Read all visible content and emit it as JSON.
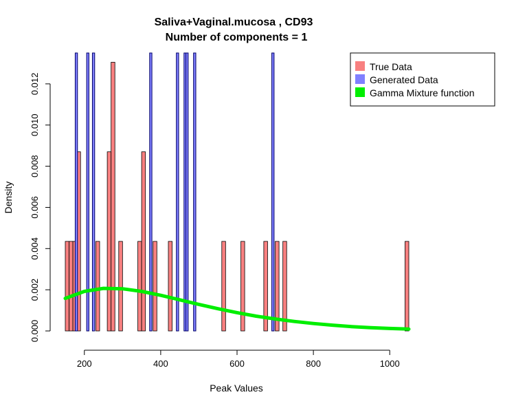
{
  "chart_data": {
    "type": "histogram",
    "title": "Saliva+Vaginal.mucosa , CD93",
    "subtitle": "Number of components =  1",
    "xlabel": "Peak Values",
    "ylabel": "Density",
    "xlim": [
      150,
      1050
    ],
    "ylim": [
      0,
      0.0135
    ],
    "x_ticks": [
      200,
      400,
      600,
      800,
      1000
    ],
    "y_ticks": [
      0.0,
      0.002,
      0.004,
      0.006,
      0.008,
      0.01,
      0.012
    ],
    "y_tick_labels": [
      "0.000",
      "0.002",
      "0.004",
      "0.006",
      "0.008",
      "0.010",
      "0.012"
    ],
    "bin_width": 10,
    "legend_position": "top-right",
    "series": [
      {
        "name": "True Data",
        "color": "#F88080",
        "bins": [
          {
            "x": 155,
            "y": 0.00435
          },
          {
            "x": 165,
            "y": 0.00435
          },
          {
            "x": 175,
            "y": 0.00435
          },
          {
            "x": 185,
            "y": 0.0087
          },
          {
            "x": 235,
            "y": 0.00435
          },
          {
            "x": 265,
            "y": 0.0087
          },
          {
            "x": 275,
            "y": 0.01305
          },
          {
            "x": 295,
            "y": 0.00435
          },
          {
            "x": 345,
            "y": 0.00435
          },
          {
            "x": 355,
            "y": 0.0087
          },
          {
            "x": 385,
            "y": 0.00435
          },
          {
            "x": 425,
            "y": 0.00435
          },
          {
            "x": 565,
            "y": 0.00435
          },
          {
            "x": 615,
            "y": 0.00435
          },
          {
            "x": 675,
            "y": 0.00435
          },
          {
            "x": 705,
            "y": 0.00435
          },
          {
            "x": 725,
            "y": 0.00435
          },
          {
            "x": 1045,
            "y": 0.00435
          }
        ]
      },
      {
        "name": "Generated Data",
        "color": "#8080FF",
        "bins": [
          {
            "x": 179,
            "y": 0.0135
          },
          {
            "x": 209,
            "y": 0.0135
          },
          {
            "x": 224,
            "y": 0.0135
          },
          {
            "x": 374,
            "y": 0.0135
          },
          {
            "x": 444,
            "y": 0.0135
          },
          {
            "x": 464,
            "y": 0.0135
          },
          {
            "x": 469,
            "y": 0.0135
          },
          {
            "x": 489,
            "y": 0.0135
          },
          {
            "x": 694,
            "y": 0.0135
          }
        ]
      },
      {
        "name": "Gamma Mixture function",
        "color": "#00EE00",
        "type": "line",
        "x": [
          150,
          200,
          250,
          300,
          350,
          400,
          450,
          500,
          550,
          600,
          650,
          700,
          750,
          800,
          850,
          900,
          950,
          1000,
          1050
        ],
        "y": [
          0.00158,
          0.00192,
          0.00207,
          0.00205,
          0.00192,
          0.00173,
          0.00151,
          0.00129,
          0.00108,
          0.00089,
          0.00072,
          0.00058,
          0.00046,
          0.00036,
          0.00028,
          0.00021,
          0.00016,
          0.00012,
          9e-05
        ]
      }
    ]
  }
}
